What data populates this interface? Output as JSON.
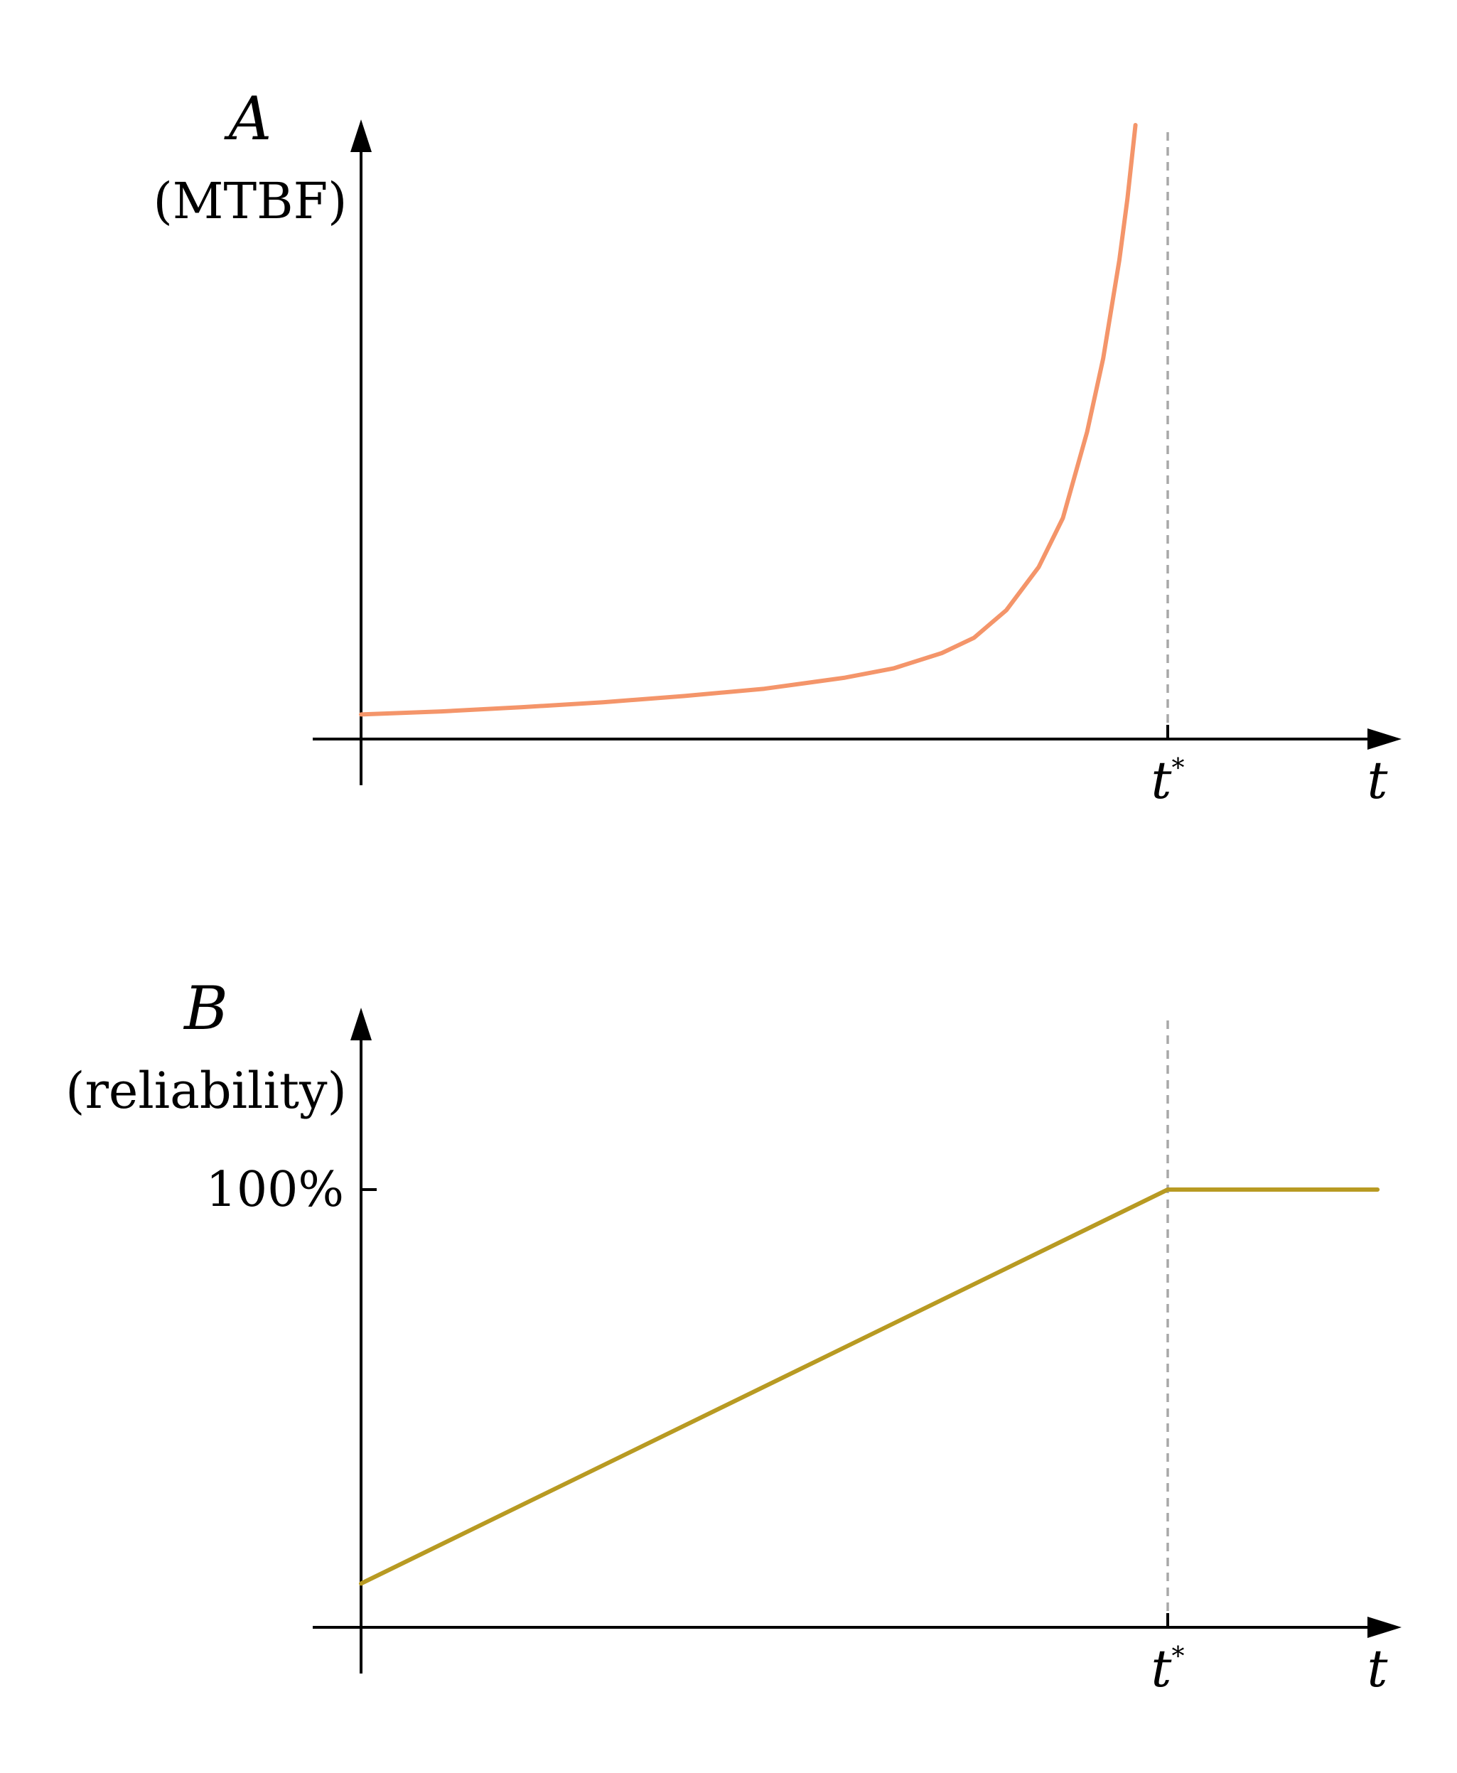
{
  "colors": {
    "curve_a": "#f4956a",
    "curve_b": "#b89a22",
    "guide": "#a8a8a8",
    "axis": "#000000"
  },
  "chart_data": [
    {
      "type": "line",
      "panel": "top",
      "ylabel_main": "A",
      "ylabel_sub": "(MTBF)",
      "xlabel": "t",
      "xtick_label": "t",
      "xtick_sup": "*",
      "xlim": [
        0,
        1.23
      ],
      "ylim": [
        0,
        1
      ],
      "t_star": 1.0,
      "series": [
        {
          "color": "#f4956a",
          "x": [
            0,
            0.1,
            0.2,
            0.3,
            0.4,
            0.5,
            0.6,
            0.66,
            0.72,
            0.76,
            0.8,
            0.84,
            0.87,
            0.9,
            0.92,
            0.94,
            0.95,
            0.96
          ],
          "y": [
            0.04,
            0.045,
            0.052,
            0.06,
            0.07,
            0.082,
            0.1,
            0.115,
            0.14,
            0.165,
            0.21,
            0.28,
            0.36,
            0.5,
            0.62,
            0.78,
            0.88,
            1.0
          ]
        }
      ]
    },
    {
      "type": "line",
      "panel": "bottom",
      "ylabel_main": "B",
      "ylabel_sub": "(reliability)",
      "xlabel": "t",
      "xtick_label": "t",
      "xtick_sup": "*",
      "ytick_label": "100%",
      "ytick_value": 100,
      "xlim": [
        0,
        1.23
      ],
      "ylim": [
        0,
        130
      ],
      "t_star": 1.0,
      "series": [
        {
          "color": "#b89a22",
          "x": [
            0,
            1.0,
            1.26
          ],
          "y": [
            10,
            100,
            100
          ]
        }
      ]
    }
  ]
}
